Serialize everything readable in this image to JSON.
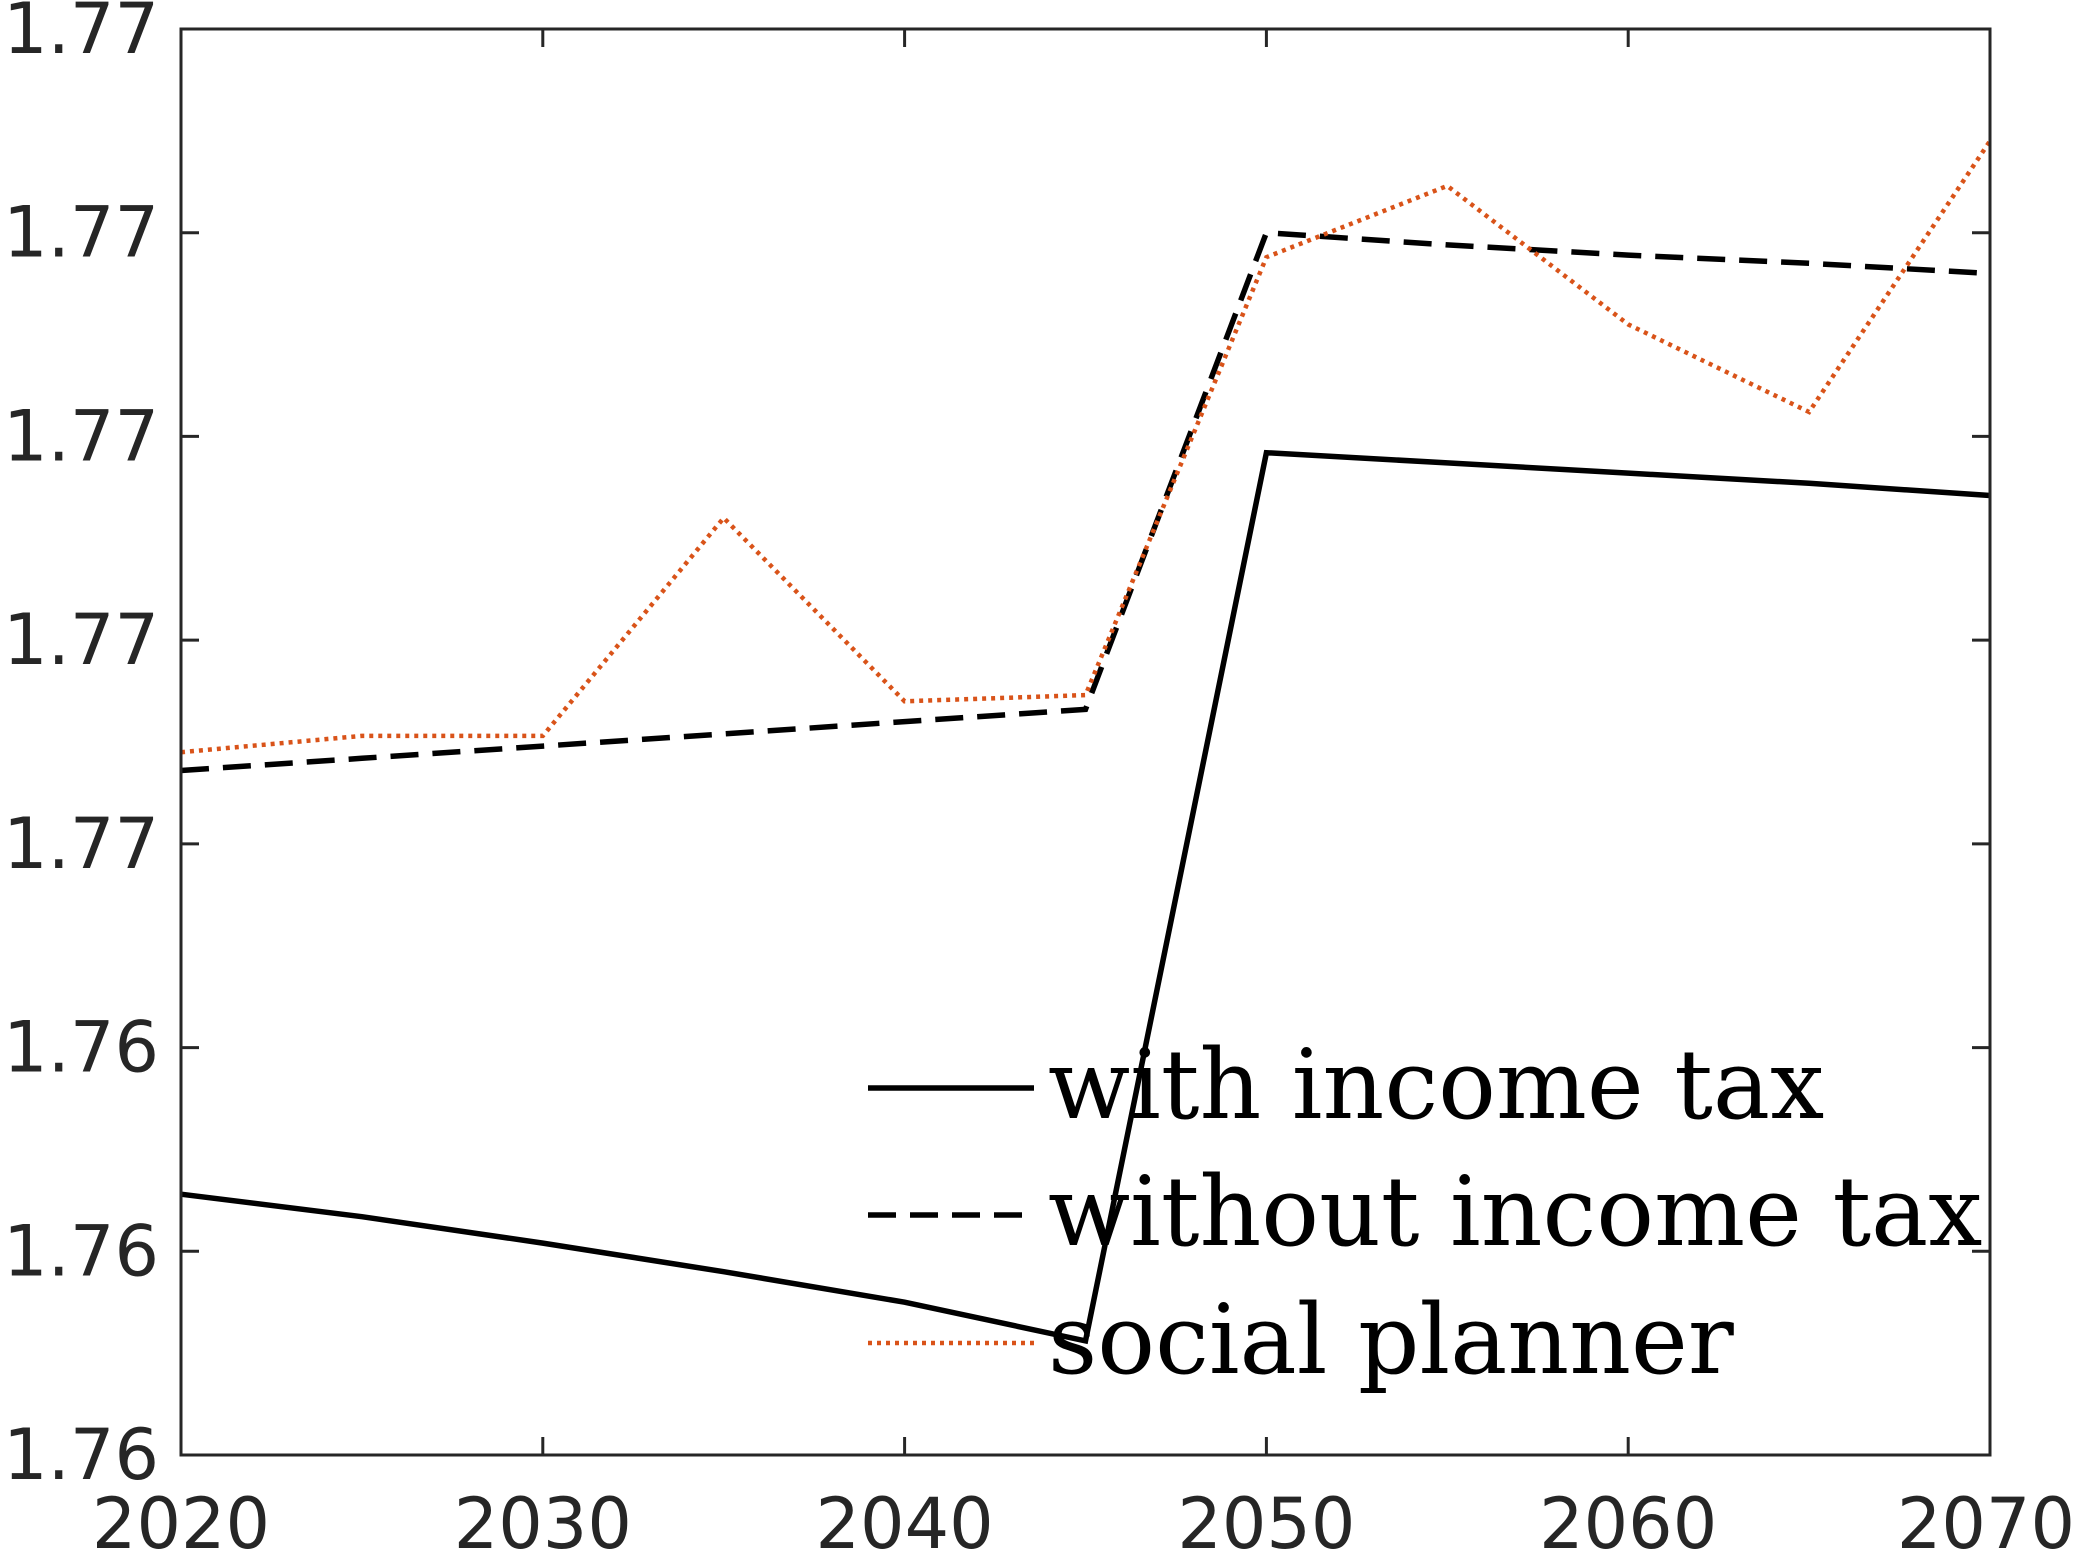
{
  "chart_data": {
    "type": "line",
    "title": "",
    "xlabel": "",
    "ylabel": "",
    "xlim": [
      2020,
      2070
    ],
    "ylim": [
      0,
      7
    ],
    "x_ticks": [
      2020,
      2030,
      2040,
      2050,
      2060,
      2070
    ],
    "x_tick_labels": [
      "2020",
      "2030",
      "2040",
      "2050",
      "2060",
      "2070"
    ],
    "y_ticks": [
      0,
      1,
      2,
      3,
      4,
      5,
      6,
      7
    ],
    "y_tick_labels": [
      "1.76",
      "1.76",
      "1.76",
      "1.77",
      "1.77",
      "1.77",
      "1.77",
      "1.77"
    ],
    "grid": false,
    "legend_position": "bottom-right",
    "series": [
      {
        "name": "with income tax",
        "style": "solid",
        "color": "#000000",
        "x": [
          2020,
          2025,
          2030,
          2035,
          2040,
          2045,
          2050,
          2055,
          2060,
          2065,
          2070
        ],
        "y": [
          1.28,
          1.17,
          1.04,
          0.9,
          0.75,
          0.56,
          4.92,
          4.87,
          4.82,
          4.77,
          4.71
        ]
      },
      {
        "name": "without income tax",
        "style": "dashed",
        "color": "#000000",
        "x": [
          2020,
          2025,
          2030,
          2035,
          2040,
          2045,
          2050,
          2055,
          2060,
          2065,
          2070
        ],
        "y": [
          3.36,
          3.42,
          3.48,
          3.54,
          3.6,
          3.66,
          6.0,
          5.94,
          5.89,
          5.85,
          5.8
        ]
      },
      {
        "name": "social planner",
        "style": "dotted",
        "color": "#d95319",
        "x": [
          2020,
          2025,
          2030,
          2035,
          2040,
          2045,
          2050,
          2055,
          2060,
          2065,
          2070
        ],
        "y": [
          3.45,
          3.53,
          3.53,
          4.6,
          3.7,
          3.73,
          5.88,
          6.23,
          5.55,
          5.12,
          6.45
        ]
      }
    ]
  }
}
